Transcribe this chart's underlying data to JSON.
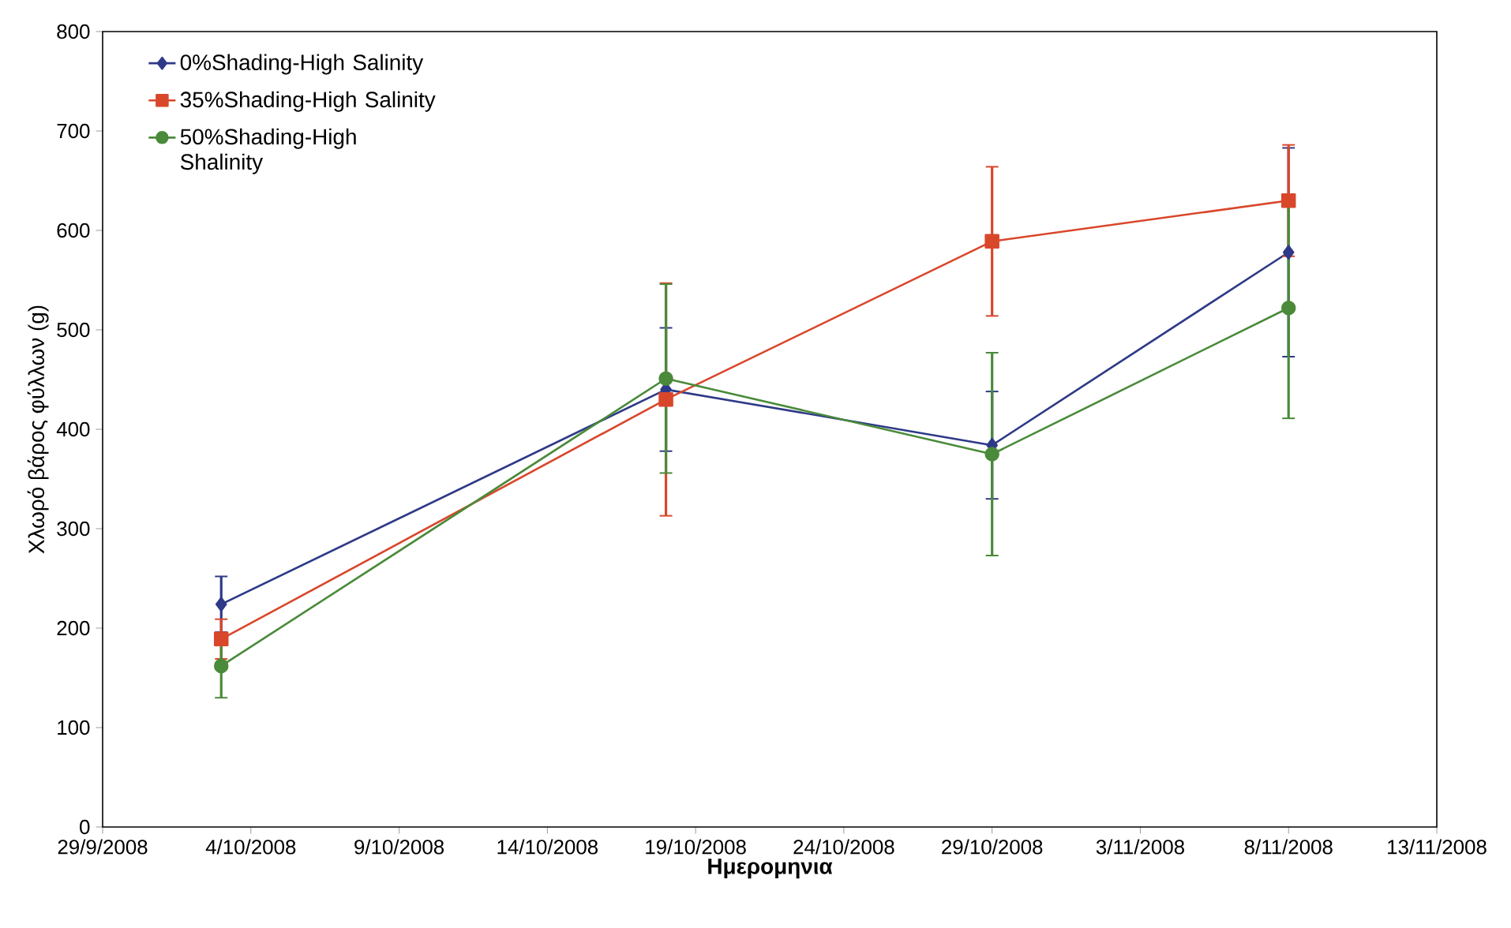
{
  "chart_data": {
    "type": "line",
    "xlabel": "**Ημερομηνια**",
    "ylabel": "Χλωρό βάρος φύλλων (g)",
    "series": [
      {
        "name": "0%Shading-High Salinity",
        "color": "#2e3a87",
        "marker": "diamond",
        "x": [
          "2008-10-03",
          "2008-10-18",
          "2008-10-29",
          "2008-11-08"
        ],
        "values": [
          224,
          440,
          384,
          578
        ],
        "errors": [
          28,
          62,
          54,
          105
        ]
      },
      {
        "name": "35%Shading-High Salinity",
        "color": "#d9472b",
        "marker": "square",
        "x": [
          "2008-10-03",
          "2008-10-18",
          "2008-10-29",
          "2008-11-08"
        ],
        "values": [
          189,
          430,
          589,
          630
        ],
        "errors": [
          20,
          117,
          75,
          56
        ]
      },
      {
        "name": "50%Shading-High Shalinity",
        "color": "#4a8a3a",
        "marker": "circle",
        "x": [
          "2008-10-03",
          "2008-10-18",
          "2008-10-29",
          "2008-11-08"
        ],
        "values": [
          162,
          451,
          375,
          522
        ],
        "errors": [
          32,
          95,
          102,
          111
        ]
      }
    ],
    "xlim": [
      "2008-09-29",
      "2008-11-13"
    ],
    "xticks": [
      {
        "value": "2008-09-29",
        "label": "29/9/2008"
      },
      {
        "value": "2008-10-04",
        "label": "4/10/2008"
      },
      {
        "value": "2008-10-09",
        "label": "9/10/2008"
      },
      {
        "value": "2008-10-14",
        "label": "14/10/2008"
      },
      {
        "value": "2008-10-19",
        "label": "19/10/2008"
      },
      {
        "value": "2008-10-24",
        "label": "24/10/2008"
      },
      {
        "value": "2008-10-29",
        "label": "29/10/2008"
      },
      {
        "value": "2008-11-03",
        "label": "3/11/2008"
      },
      {
        "value": "2008-11-08",
        "label": "8/11/2008"
      },
      {
        "value": "2008-11-13",
        "label": "13/11/2008"
      }
    ],
    "ylim": [
      0,
      800
    ],
    "yticks": [
      0,
      100,
      200,
      300,
      400,
      500,
      600,
      700,
      800
    ],
    "legend": "top left",
    "grid": false,
    "line_style": "solid"
  }
}
